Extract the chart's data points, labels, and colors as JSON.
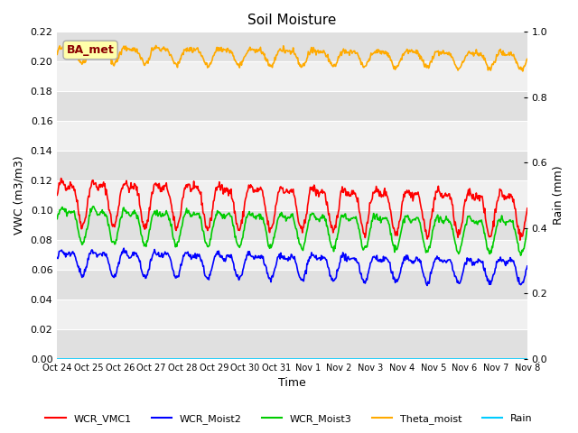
{
  "title": "Soil Moisture",
  "xlabel": "Time",
  "ylabel_left": "VWC (m3/m3)",
  "ylabel_right": "Rain (mm)",
  "background_color": "#ffffff",
  "plot_bg_color": "#e8e8e8",
  "band_color1": "#e0e0e0",
  "band_color2": "#f0f0f0",
  "x_tick_labels": [
    "Oct 24",
    "Oct 25",
    "Oct 26",
    "Oct 27",
    "Oct 28",
    "Oct 29",
    "Oct 30",
    "Oct 31",
    "Nov 1",
    "Nov 2",
    "Nov 3",
    "Nov 4",
    "Nov 5",
    "Nov 6",
    "Nov 7",
    "Nov 8"
  ],
  "ylim_left": [
    0.0,
    0.22
  ],
  "ylim_right": [
    0.0,
    1.0
  ],
  "annotation_text": "BA_met",
  "annotation_color": "#8b0000",
  "annotation_bg": "#ffffaa",
  "series": {
    "WCR_VMC1": {
      "color": "#ff0000",
      "base": 0.109,
      "amp1": 0.013,
      "amp2": 0.006,
      "trend": -0.008
    },
    "WCR_Moist2": {
      "color": "#0000ff",
      "base": 0.067,
      "amp1": 0.007,
      "amp2": 0.004,
      "trend": -0.006
    },
    "WCR_Moist3": {
      "color": "#00cc00",
      "base": 0.093,
      "amp1": 0.01,
      "amp2": 0.005,
      "trend": -0.007
    },
    "Theta_moist": {
      "color": "#ffaa00",
      "base": 0.206,
      "amp1": 0.005,
      "amp2": 0.002,
      "trend": -0.004
    },
    "Rain": {
      "color": "#00ccff",
      "base": 0.0,
      "amp1": 0.0,
      "amp2": 0.0,
      "trend": 0.0
    }
  },
  "legend_entries": [
    "WCR_VMC1",
    "WCR_Moist2",
    "WCR_Moist3",
    "Theta_moist",
    "Rain"
  ],
  "legend_colors": [
    "#ff0000",
    "#0000ff",
    "#00cc00",
    "#ffaa00",
    "#00ccff"
  ]
}
